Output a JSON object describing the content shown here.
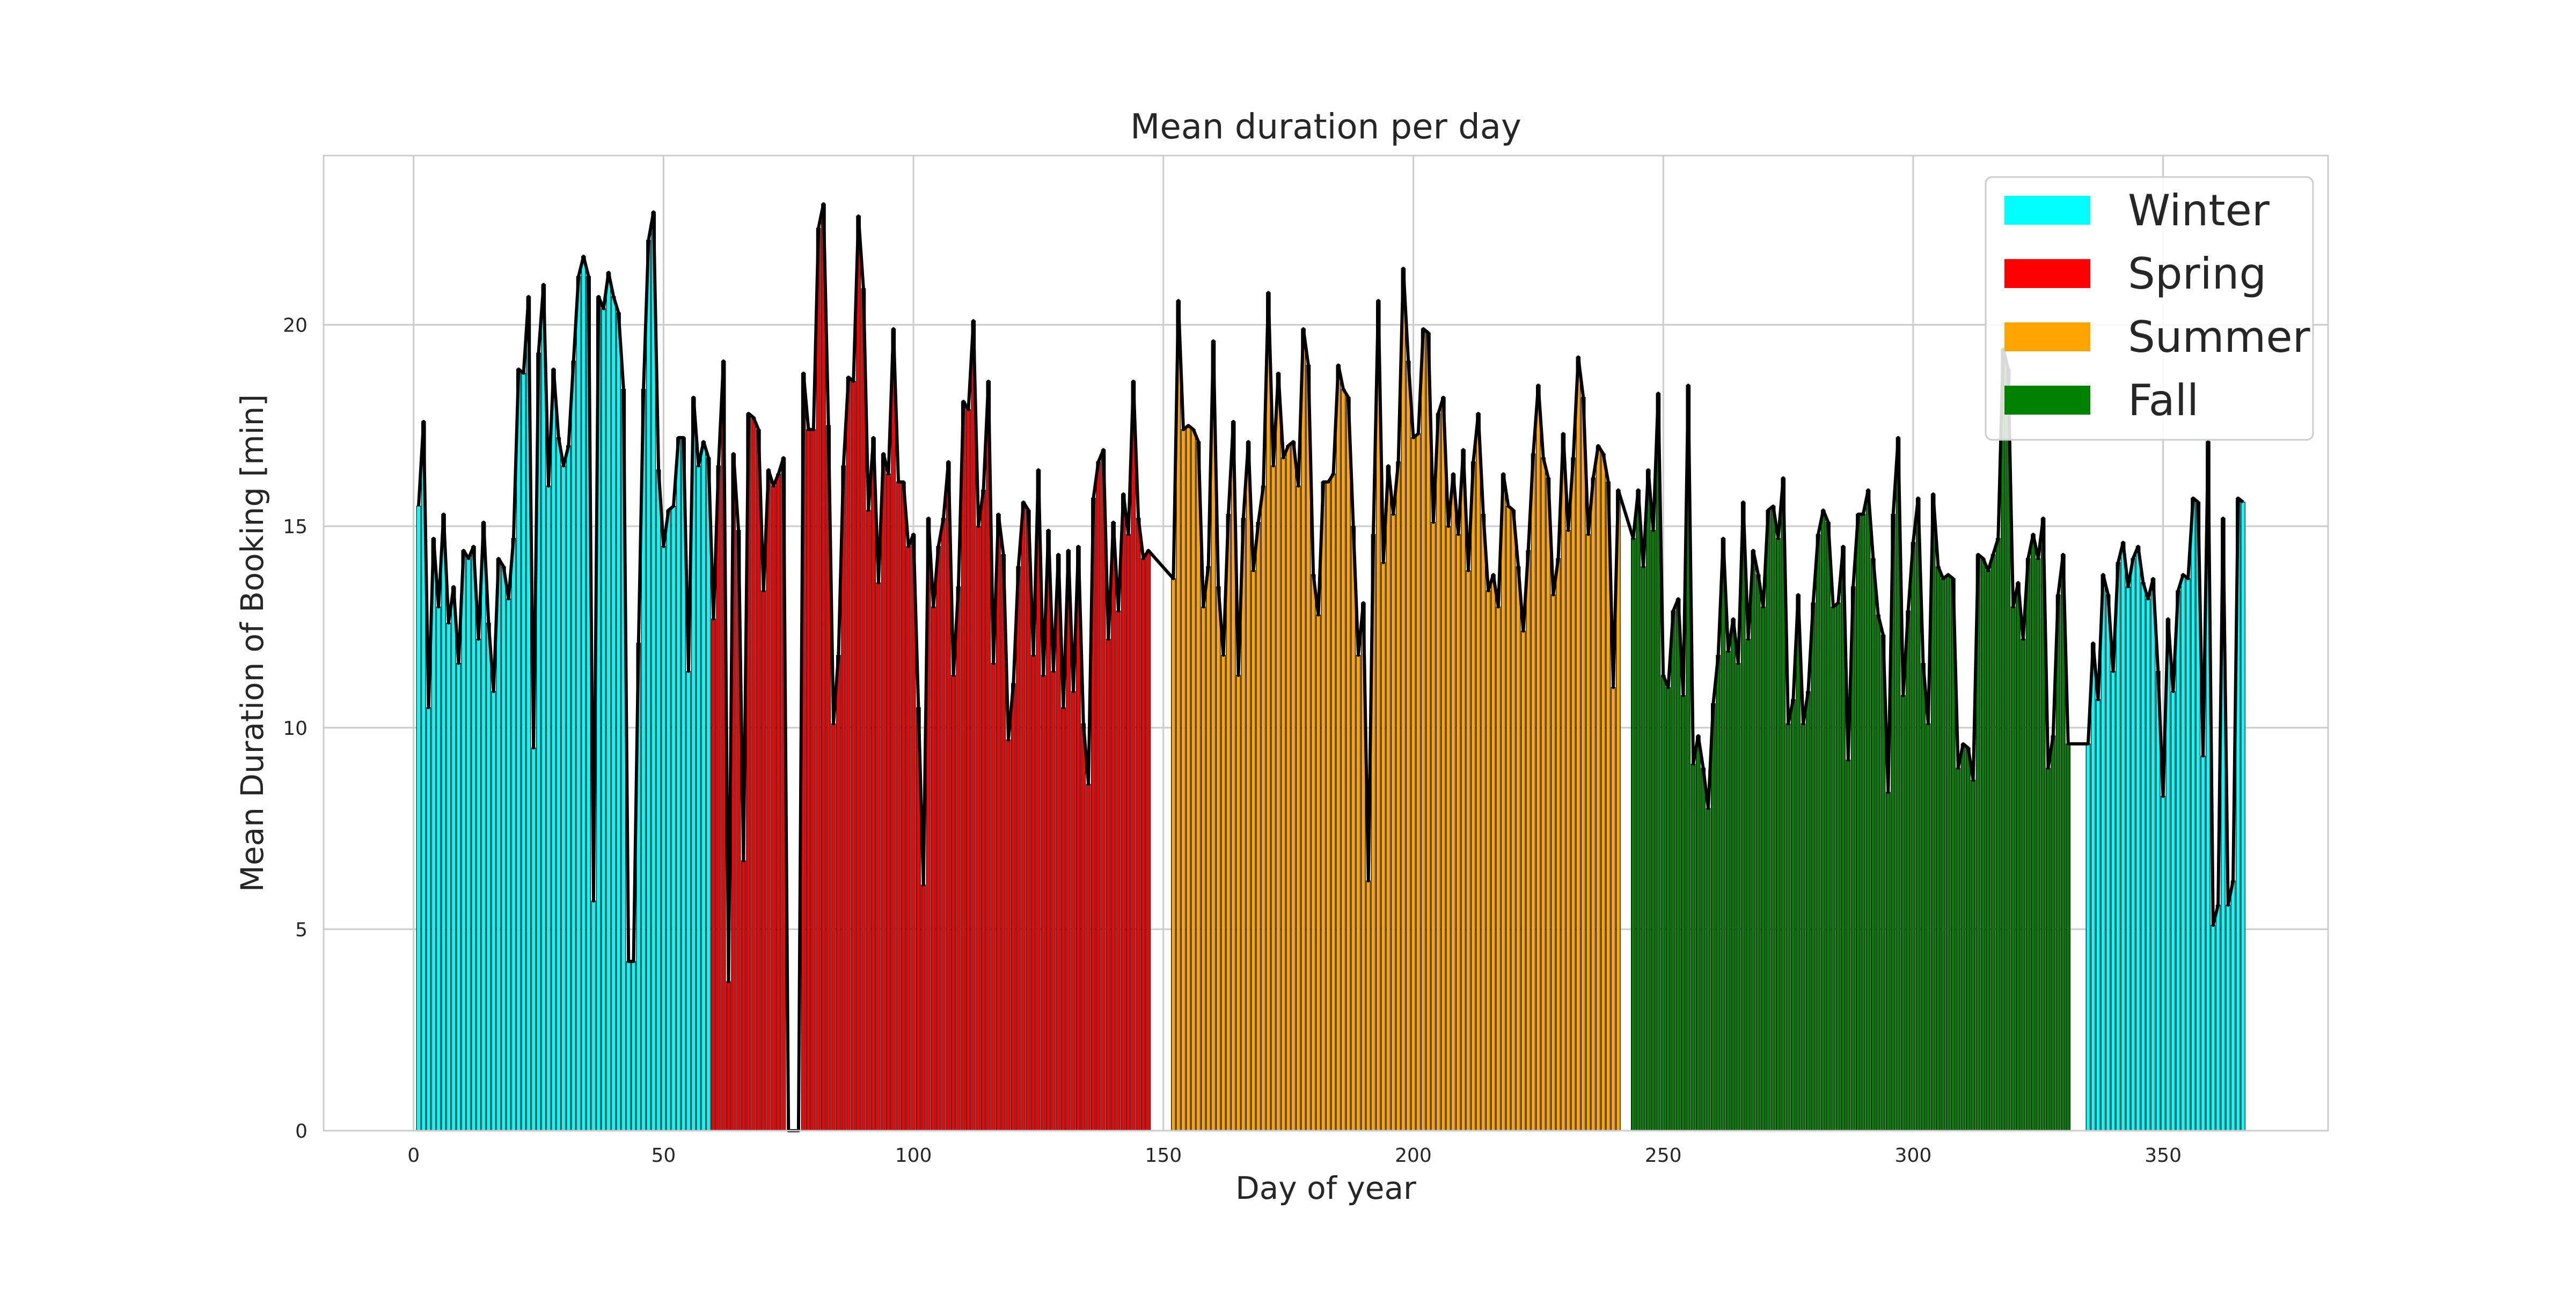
{
  "chart_data": {
    "type": "bar",
    "title": "Mean duration per day",
    "xlabel": "Day of year",
    "ylabel": "Mean Duration of Booking [min]",
    "xlim": [
      -18,
      383
    ],
    "ylim": [
      0,
      24.2
    ],
    "xticks": [
      0,
      50,
      100,
      150,
      200,
      250,
      300,
      350
    ],
    "yticks": [
      0,
      5,
      10,
      15,
      20
    ],
    "grid": true,
    "legend": {
      "position": "top-right",
      "entries": [
        {
          "label": "Winter",
          "color": "#00FFFF"
        },
        {
          "label": "Spring",
          "color": "#FF0000"
        },
        {
          "label": "Summer",
          "color": "#FFA500"
        },
        {
          "label": "Fall",
          "color": "#008000"
        }
      ]
    },
    "line_color": "#000000",
    "bar_outline_color": "#000000",
    "series": [
      {
        "season": "Winter",
        "color": "#00FFFF",
        "x_start": 1,
        "values": [
          15.5,
          17.6,
          10.5,
          14.7,
          13.0,
          15.3,
          12.6,
          13.5,
          11.6,
          14.4,
          14.2,
          14.5,
          12.2,
          15.1,
          12.6,
          10.9,
          14.2,
          14.0,
          13.2,
          14.7,
          18.9,
          18.8,
          20.7,
          9.5,
          19.3,
          21.0,
          16.0,
          18.9,
          17.2,
          16.5,
          17.0,
          19.1,
          21.2,
          21.7,
          21.2,
          5.7,
          20.7,
          20.4,
          21.3,
          20.7,
          20.3,
          18.4,
          4.2,
          4.2,
          12.1,
          18.4,
          22.1,
          22.8,
          16.4,
          14.5,
          15.4,
          15.5,
          17.2,
          17.2,
          11.4,
          18.2,
          16.5,
          17.1,
          16.7
        ]
      },
      {
        "season": "Spring",
        "color": "#FF0000",
        "x_start": 60,
        "values": [
          12.7,
          16.5,
          19.1,
          3.7,
          16.8,
          14.9,
          6.7,
          17.8,
          17.7,
          17.4,
          13.4,
          16.4,
          16.0,
          16.3,
          16.7,
          0,
          0,
          0,
          18.8,
          17.4,
          17.4,
          22.4,
          23.0,
          17.5,
          10.1,
          11.8,
          16.5,
          18.7,
          18.6,
          22.7,
          20.9,
          15.4,
          17.2,
          13.6,
          16.8,
          16.3,
          19.9,
          16.1,
          16.1,
          14.5,
          14.8,
          10.5,
          6.1,
          15.2,
          13.0,
          14.5,
          15.2,
          16.6,
          11.3,
          13.5,
          18.1,
          17.9,
          20.1,
          15.0,
          15.9,
          18.6,
          11.6,
          15.3,
          14.3,
          9.7,
          11.1,
          14.0,
          15.6,
          15.4,
          11.8,
          16.4,
          11.3,
          14.9,
          11.4,
          14.3,
          10.5,
          14.4,
          10.9,
          14.5,
          10.1,
          8.6,
          15.7,
          16.6,
          16.9,
          12.2,
          15.1,
          12.9,
          15.8,
          14.8,
          18.6,
          15.2,
          14.2,
          14.4
        ]
      },
      {
        "season": "Summer",
        "color": "#FFA500",
        "x_start": 152,
        "values": [
          13.7,
          20.6,
          17.4,
          17.5,
          17.4,
          17.1,
          13.0,
          14.0,
          19.6,
          13.5,
          11.8,
          15.3,
          17.6,
          11.3,
          15.2,
          17.1,
          13.9,
          15.1,
          16.0,
          20.8,
          16.5,
          18.8,
          16.7,
          17.0,
          17.1,
          16.0,
          19.9,
          19.0,
          13.8,
          12.8,
          16.1,
          16.1,
          16.3,
          19.0,
          18.4,
          18.2,
          15.0,
          11.8,
          13.1,
          6.2,
          14.8,
          20.6,
          14.1,
          16.5,
          15.3,
          16.6,
          21.4,
          19.1,
          17.2,
          17.3,
          19.9,
          19.8,
          15.1,
          17.8,
          18.2,
          15.0,
          16.3,
          14.8,
          16.9,
          13.9,
          16.6,
          17.8,
          15.3,
          13.4,
          13.8,
          13.0,
          16.3,
          15.5,
          15.4,
          14.0,
          12.4,
          14.4,
          16.8,
          18.5,
          16.7,
          16.2,
          13.3,
          14.2,
          17.3,
          14.9,
          16.7,
          19.2,
          18.2,
          14.8,
          16.2,
          17.0,
          16.8,
          16.1,
          11.0,
          15.9
        ]
      },
      {
        "season": "Fall",
        "color": "#008000",
        "x_start": 244,
        "values": [
          14.7,
          15.9,
          14.0,
          16.4,
          14.9,
          18.3,
          11.3,
          11.0,
          12.9,
          13.2,
          10.8,
          18.5,
          9.1,
          9.8,
          9.0,
          8.0,
          10.6,
          11.8,
          14.7,
          11.9,
          12.7,
          11.6,
          15.6,
          12.2,
          14.4,
          13.8,
          13.0,
          15.4,
          15.5,
          14.7,
          16.2,
          10.1,
          10.7,
          13.3,
          10.1,
          10.9,
          13.1,
          14.8,
          15.4,
          15.1,
          13.0,
          13.1,
          14.5,
          9.2,
          13.5,
          15.3,
          15.3,
          15.9,
          14.2,
          12.8,
          12.3,
          8.4,
          15.3,
          17.2,
          10.8,
          12.9,
          14.6,
          15.7,
          11.6,
          10.1,
          15.8,
          14.0,
          13.7,
          13.8,
          13.7,
          9.0,
          9.6,
          9.5,
          8.7,
          14.3,
          14.2,
          13.9,
          14.3,
          14.7,
          19.4,
          18.9,
          13.0,
          13.6,
          12.2,
          14.2,
          14.8,
          14.2,
          15.2,
          9.0,
          9.8,
          13.3,
          14.3,
          9.6
        ]
      },
      {
        "season": "Winter",
        "color": "#00FFFF",
        "x_start": 335,
        "values": [
          9.6,
          12.1,
          10.7,
          13.8,
          13.3,
          11.4,
          14.1,
          14.6,
          13.5,
          14.2,
          14.5,
          13.6,
          13.2,
          13.7,
          11.4,
          8.3,
          12.7,
          10.9,
          13.4,
          13.8,
          13.7,
          15.7,
          15.6,
          9.3,
          17.1,
          5.1,
          5.6,
          15.2,
          5.6,
          6.2,
          15.7,
          15.6
        ]
      }
    ]
  }
}
